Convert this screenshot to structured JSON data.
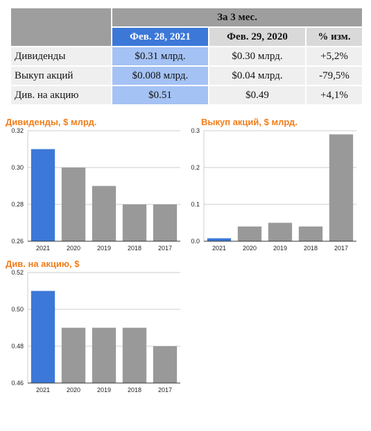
{
  "table": {
    "period": "За 3 мес.",
    "headers": [
      "Фев. 28, 2021",
      "Фев. 29, 2020",
      "% изм."
    ],
    "rows": [
      {
        "label": "Дивиденды",
        "current": "$0.31 млрд.",
        "previous": "$0.30 млрд.",
        "change": "+5,2%"
      },
      {
        "label": "Выкуп акций",
        "current": "$0.008 млрд.",
        "previous": "$0.04 млрд.",
        "change": "-79,5%"
      },
      {
        "label": "Див. на акцию",
        "current": "$0.51",
        "previous": "$0.49",
        "change": "+4,1%"
      }
    ]
  },
  "colors": {
    "highlight": "#3c78d8",
    "bar": "#999999",
    "title": "#f07d1a"
  },
  "chart_data": [
    {
      "type": "bar",
      "title": "Дивиденды, $ млрд.",
      "categories": [
        "2021",
        "2020",
        "2019",
        "2018",
        "2017"
      ],
      "values": [
        0.31,
        0.3,
        0.29,
        0.28,
        0.28
      ],
      "ylim": [
        0.26,
        0.32
      ],
      "yticks": [
        "0.26",
        "0.28",
        "0.30",
        "0.32"
      ],
      "grid": true
    },
    {
      "type": "bar",
      "title": "Выкуп акций, $ млрд.",
      "categories": [
        "2021",
        "2020",
        "2019",
        "2018",
        "2017"
      ],
      "values": [
        0.008,
        0.04,
        0.05,
        0.04,
        0.29
      ],
      "ylim": [
        0,
        0.3
      ],
      "yticks": [
        "0.0",
        "0.1",
        "0.2",
        "0.3"
      ],
      "grid": true
    },
    {
      "type": "bar",
      "title": "Див. на акцию, $",
      "categories": [
        "2021",
        "2020",
        "2019",
        "2018",
        "2017"
      ],
      "values": [
        0.51,
        0.49,
        0.49,
        0.49,
        0.48
      ],
      "ylim": [
        0.46,
        0.52
      ],
      "yticks": [
        "0.46",
        "0.48",
        "0.50",
        "0.52"
      ],
      "grid": true
    }
  ]
}
